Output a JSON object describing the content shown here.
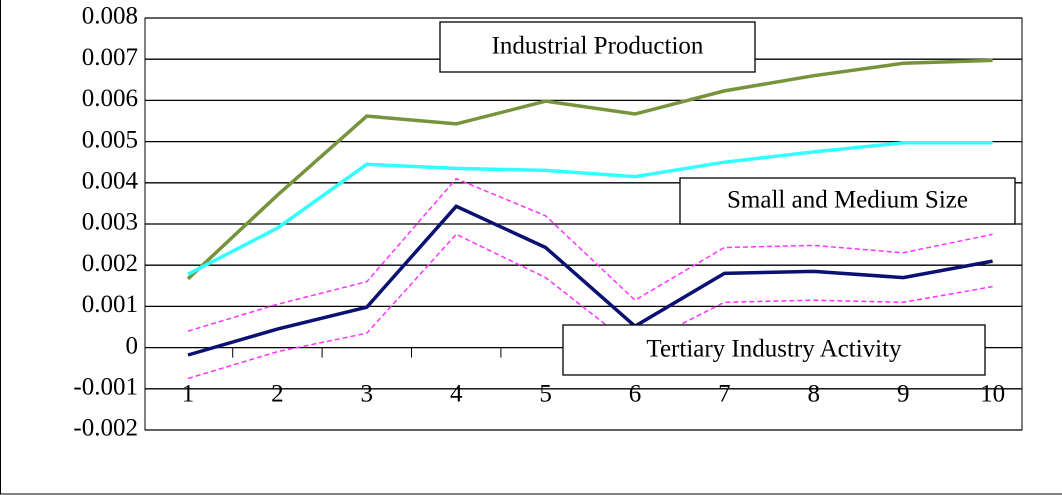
{
  "chart_data": {
    "type": "line",
    "categories": [
      "1",
      "2",
      "3",
      "4",
      "5",
      "6",
      "7",
      "8",
      "9",
      "10"
    ],
    "ylim": [
      -0.002,
      0.008
    ],
    "yticks": [
      -0.002,
      -0.001,
      0,
      0.001,
      0.002,
      0.003,
      0.004,
      0.005,
      0.006,
      0.007,
      0.008
    ],
    "grid": true,
    "series": [
      {
        "name": "Industrial Production",
        "color": "#77933c",
        "values": [
          0.00167,
          0.0037,
          0.00562,
          0.00543,
          0.00598,
          0.00567,
          0.00623,
          0.0066,
          0.0069,
          0.00697
        ]
      },
      {
        "name": "Small and Medium Size",
        "color": "#33ffff",
        "values": [
          0.00178,
          0.0029,
          0.00445,
          0.00435,
          0.0043,
          0.00415,
          0.0045,
          0.00475,
          0.00497,
          0.00497
        ]
      },
      {
        "color": "#ff33ff",
        "dashed": true,
        "values": [
          0.0004,
          0.00105,
          0.0016,
          0.0041,
          0.0032,
          0.00115,
          0.00243,
          0.00248,
          0.0023,
          0.00275
        ]
      },
      {
        "color": "#ff33ff",
        "dashed": true,
        "values": [
          -0.00075,
          -0.0001,
          0.00035,
          0.00275,
          0.0017,
          0.0,
          0.0011,
          0.00115,
          0.0011,
          0.00148
        ]
      },
      {
        "name": "Tertiary Industry Activity",
        "color": "#0a1172",
        "values": [
          -0.00018,
          0.00045,
          0.00098,
          0.00343,
          0.00243,
          0.00052,
          0.0018,
          0.00185,
          0.0017,
          0.0021
        ]
      }
    ]
  }
}
